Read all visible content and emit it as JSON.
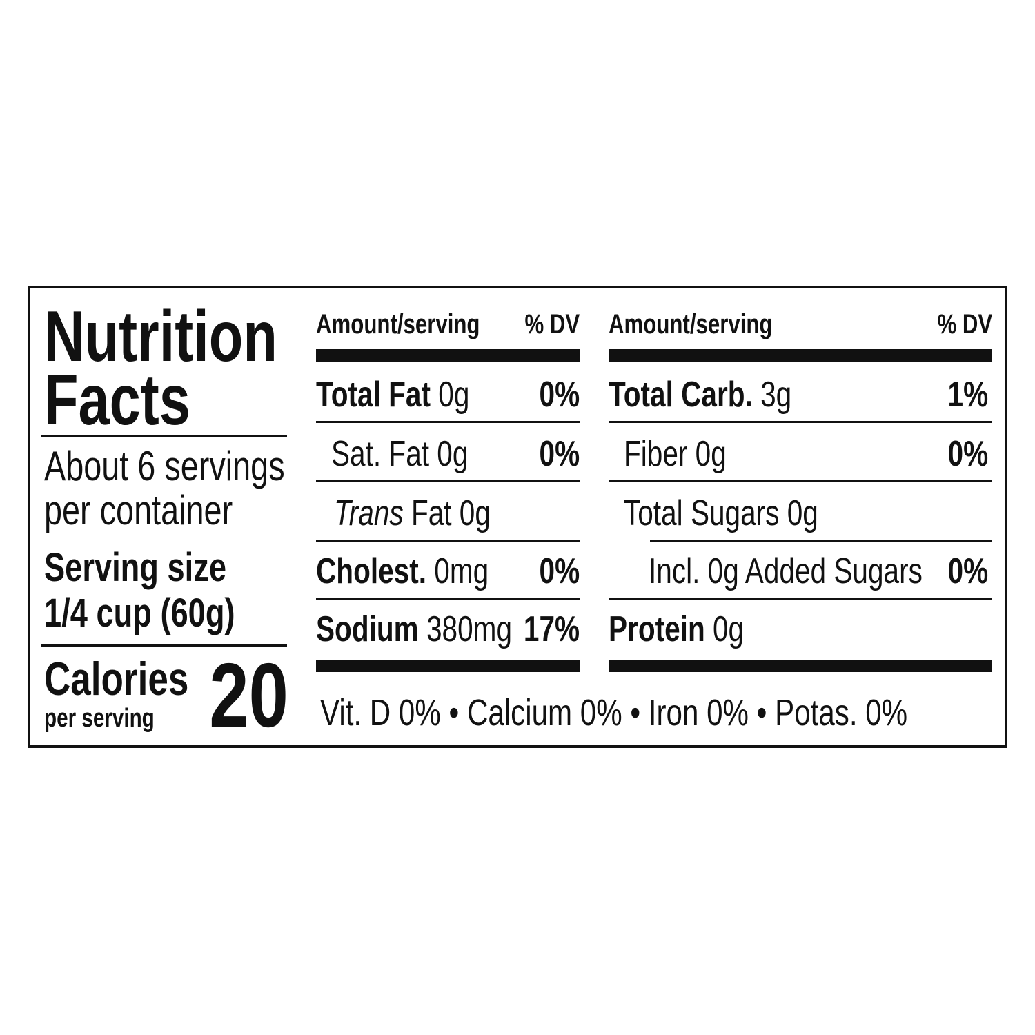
{
  "left": {
    "title_line1": "Nutrition",
    "title_line2": "Facts",
    "servings_line1": "About 6 servings",
    "servings_line2": "per container",
    "serving_size_label": "Serving size",
    "serving_size_value": "1/4 cup (60g)",
    "calories_label": "Calories",
    "calories_sub": "per serving",
    "calories_value": "20"
  },
  "header": {
    "amount": "Amount/serving",
    "dv": "% DV"
  },
  "middle": [
    {
      "name": "Total Fat",
      "amount": " 0g",
      "dv": "0%",
      "bold": true
    },
    {
      "name": "Sat. Fat",
      "amount": " 0g",
      "dv": "0%",
      "bold": false
    },
    {
      "name": "Trans",
      "amount": " Fat 0g",
      "dv": "",
      "bold": false
    },
    {
      "name": "Cholest.",
      "amount": " 0mg",
      "dv": "0%",
      "bold": true
    },
    {
      "name": "Sodium",
      "amount": " 380mg",
      "dv": "17%",
      "bold": true
    }
  ],
  "right": [
    {
      "name": "Total Carb.",
      "amount": " 3g",
      "dv": "1%",
      "bold": true
    },
    {
      "name": "Fiber",
      "amount": " 0g",
      "dv": "0%",
      "bold": false
    },
    {
      "name": "Total Sugars",
      "amount": " 0g",
      "dv": "",
      "bold": false
    },
    {
      "name": "Incl. 0g Added Sugars",
      "amount": "",
      "dv": "0%",
      "bold": false
    },
    {
      "name": "Protein",
      "amount": " 0g",
      "dv": "",
      "bold": true
    }
  ],
  "footer": "Vit. D 0% • Calcium 0% • Iron 0% • Potas. 0%"
}
